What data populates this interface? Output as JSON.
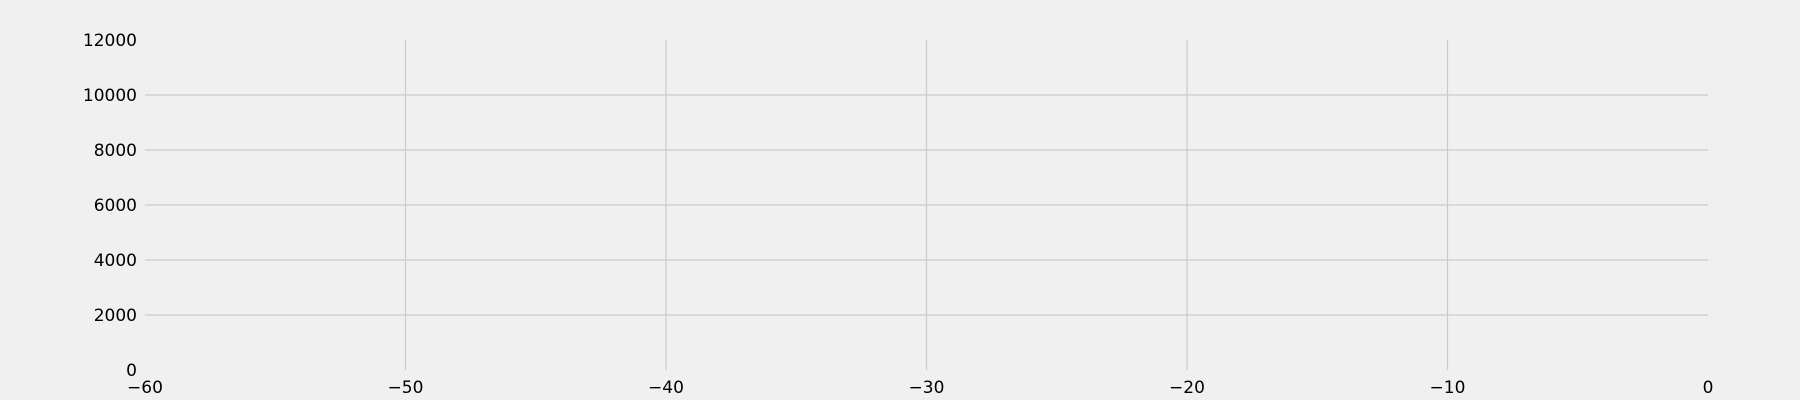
{
  "chart_data": {
    "type": "line",
    "title": "",
    "xlabel": "",
    "ylabel": "",
    "xlim": [
      -60,
      0
    ],
    "ylim": [
      0,
      12000
    ],
    "x_ticks": [
      -60,
      -50,
      -40,
      -30,
      -20,
      -10,
      0
    ],
    "y_ticks": [
      0,
      2000,
      4000,
      6000,
      8000,
      10000,
      12000
    ],
    "x_tick_labels": [
      "−60",
      "−50",
      "−40",
      "−30",
      "−20",
      "−10",
      "0"
    ],
    "y_tick_labels": [
      "0",
      "2000",
      "4000",
      "6000",
      "8000",
      "10000",
      "12000"
    ],
    "grid": true,
    "series": [],
    "colors": {
      "background": "#f0f0f0",
      "grid": "#cbcbcb",
      "text": "#000000"
    }
  }
}
